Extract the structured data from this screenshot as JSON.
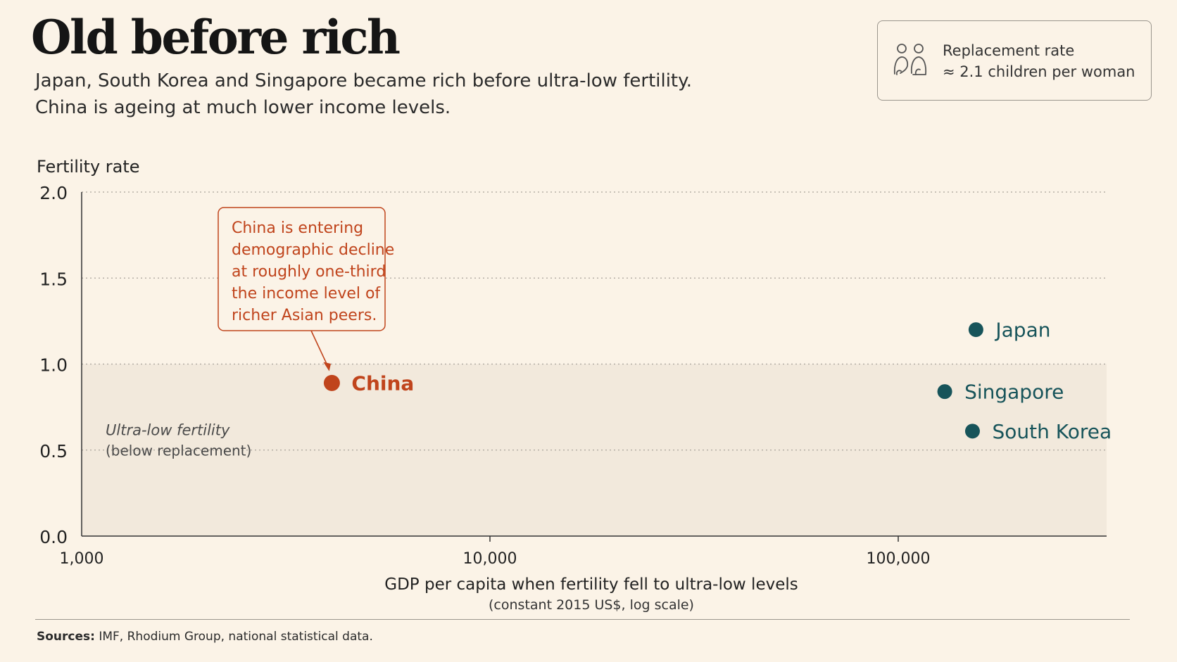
{
  "header": {
    "title": "Old before rich",
    "subtitle_line1": "Japan, South Korea and Singapore became rich before ultra-low fertility.",
    "subtitle_line2": "China is ageing at much lower income levels."
  },
  "legend": {
    "icon": "people-icon",
    "line1": "Replacement rate",
    "line2": "≈ 2.1 children per woman"
  },
  "chart_data": {
    "type": "scatter",
    "ylabel": "Fertility rate",
    "xlabel": "GDP per capita when fertility fell to ultra-low levels",
    "xlabel_note": "(constant 2015 US$, log scale)",
    "x_scale": "log",
    "xlim": [
      1000,
      300000
    ],
    "ylim": [
      0,
      2.0
    ],
    "x_ticks": [
      {
        "value": 1000,
        "label": "1,000"
      },
      {
        "value": 10000,
        "label": "10,000"
      },
      {
        "value": 100000,
        "label": "100,000"
      }
    ],
    "y_ticks": [
      {
        "value": 0,
        "label": "0.0"
      },
      {
        "value": 0.5,
        "label": "0.5"
      },
      {
        "value": 1.0,
        "label": "1.0"
      },
      {
        "value": 1.5,
        "label": "1.5"
      },
      {
        "value": 2.0,
        "label": "2.0"
      }
    ],
    "grid": "horizontal dotted",
    "shaded_region": {
      "y_from": 0,
      "y_to": 1.0,
      "label_line1": "Ultra-low fertility",
      "label_line2": "(below replacement)"
    },
    "points": [
      {
        "label": "China",
        "x": 4100,
        "y": 0.89,
        "color": "#c0441c"
      },
      {
        "label": "Japan",
        "x": 155000,
        "y": 1.2,
        "color": "#17545a"
      },
      {
        "label": "Singapore",
        "x": 130000,
        "y": 0.84,
        "color": "#17545a"
      },
      {
        "label": "South Korea",
        "x": 152000,
        "y": 0.61,
        "color": "#17545a"
      }
    ],
    "annotation": {
      "target": "China",
      "lines": [
        "China is entering",
        "demographic decline",
        "at roughly one-third",
        "the income level of",
        "richer Asian peers."
      ],
      "color": "#c0441c"
    }
  },
  "footer": {
    "sources_label": "Sources:",
    "sources_text": "IMF, Rhodium Group, national statistical data."
  }
}
